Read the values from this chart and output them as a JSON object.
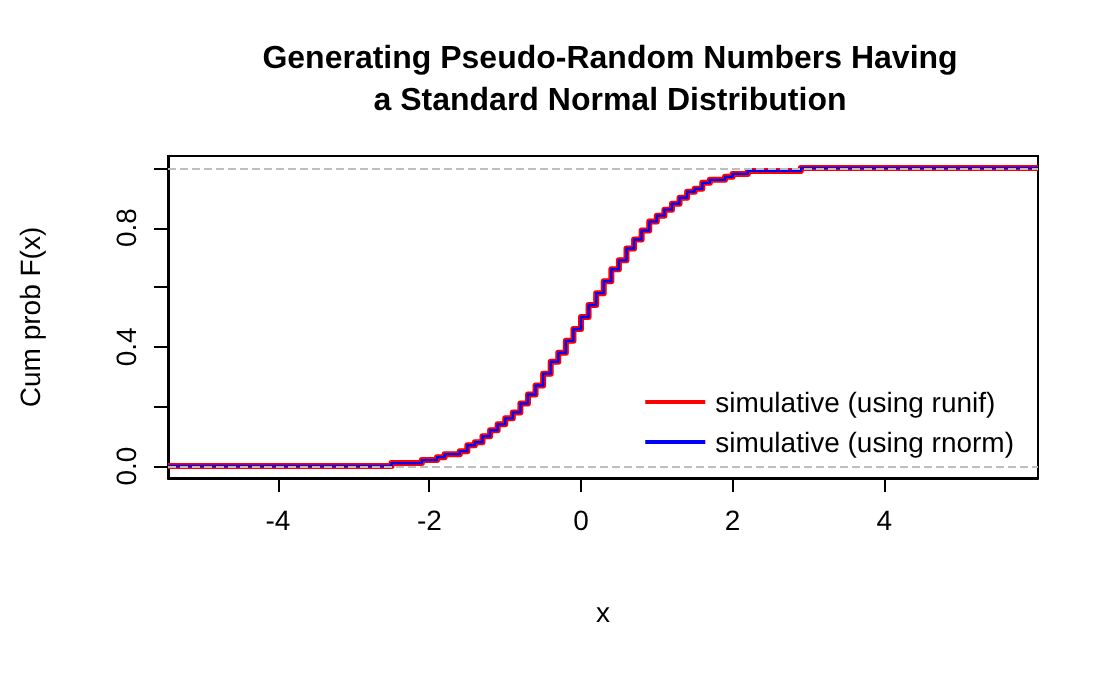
{
  "chart_data": {
    "type": "step",
    "title": "Generating Pseudo-Random Numbers Having\na Standard Normal Distribution",
    "xlabel": "x",
    "ylabel": "Cum prob F(x)",
    "x": [
      -5.45,
      -3.3,
      -2.5,
      -2.4,
      -2.3,
      -2.2,
      -2.1,
      -2.0,
      -1.9,
      -1.8,
      -1.7,
      -1.6,
      -1.5,
      -1.4,
      -1.3,
      -1.2,
      -1.1,
      -1.0,
      -0.9,
      -0.8,
      -0.7,
      -0.6,
      -0.5,
      -0.4,
      -0.3,
      -0.2,
      -0.1,
      0,
      0.1,
      0.2,
      0.3,
      0.4,
      0.5,
      0.6,
      0.7,
      0.8,
      0.9,
      1.0,
      1.1,
      1.2,
      1.3,
      1.4,
      1.5,
      1.6,
      1.7,
      1.8,
      1.9,
      2.0,
      2.1,
      2.2,
      2.3,
      2.5,
      2.9,
      6.03
    ],
    "series": [
      {
        "name": "simulative (using runif)",
        "color": "#ff0000",
        "values": [
          0,
          0,
          0.01,
          0.01,
          0.01,
          0.01,
          0.02,
          0.02,
          0.03,
          0.04,
          0.04,
          0.05,
          0.07,
          0.08,
          0.1,
          0.12,
          0.14,
          0.16,
          0.18,
          0.21,
          0.24,
          0.27,
          0.31,
          0.35,
          0.38,
          0.42,
          0.46,
          0.5,
          0.54,
          0.58,
          0.62,
          0.66,
          0.69,
          0.73,
          0.76,
          0.79,
          0.82,
          0.84,
          0.86,
          0.88,
          0.9,
          0.92,
          0.93,
          0.95,
          0.96,
          0.96,
          0.97,
          0.98,
          0.98,
          0.99,
          0.99,
          0.99,
          1,
          1
        ]
      },
      {
        "name": "simulative (using rnorm)",
        "color": "#0000ff",
        "values": [
          0,
          0,
          0.01,
          0.01,
          0.01,
          0.01,
          0.02,
          0.02,
          0.03,
          0.04,
          0.04,
          0.05,
          0.07,
          0.08,
          0.1,
          0.12,
          0.14,
          0.16,
          0.18,
          0.21,
          0.24,
          0.27,
          0.31,
          0.35,
          0.38,
          0.42,
          0.46,
          0.5,
          0.54,
          0.58,
          0.62,
          0.66,
          0.69,
          0.73,
          0.76,
          0.79,
          0.82,
          0.84,
          0.86,
          0.88,
          0.9,
          0.92,
          0.93,
          0.95,
          0.96,
          0.96,
          0.97,
          0.98,
          0.98,
          0.99,
          0.99,
          0.99,
          1,
          1
        ]
      }
    ],
    "xlim": [
      -5.45,
      6.03
    ],
    "xticks": [
      -4,
      -2,
      0,
      2,
      4
    ],
    "ylim": [
      -0.04,
      1.04
    ],
    "yticks": [
      {
        "value": 0,
        "label": "0.0"
      },
      {
        "value": 0.2,
        "label": null
      },
      {
        "value": 0.4,
        "label": "0.4"
      },
      {
        "value": 0.6,
        "label": null
      },
      {
        "value": 0.8,
        "label": "0.8"
      },
      {
        "value": 1,
        "label": null
      }
    ],
    "ref_lines": [
      {
        "axis": "y",
        "value": 0,
        "color": "#bebebe",
        "line_style": "dashed"
      },
      {
        "axis": "y",
        "value": 1,
        "color": "#bebebe",
        "line_style": "dashed"
      }
    ],
    "legend": "bottom right"
  }
}
